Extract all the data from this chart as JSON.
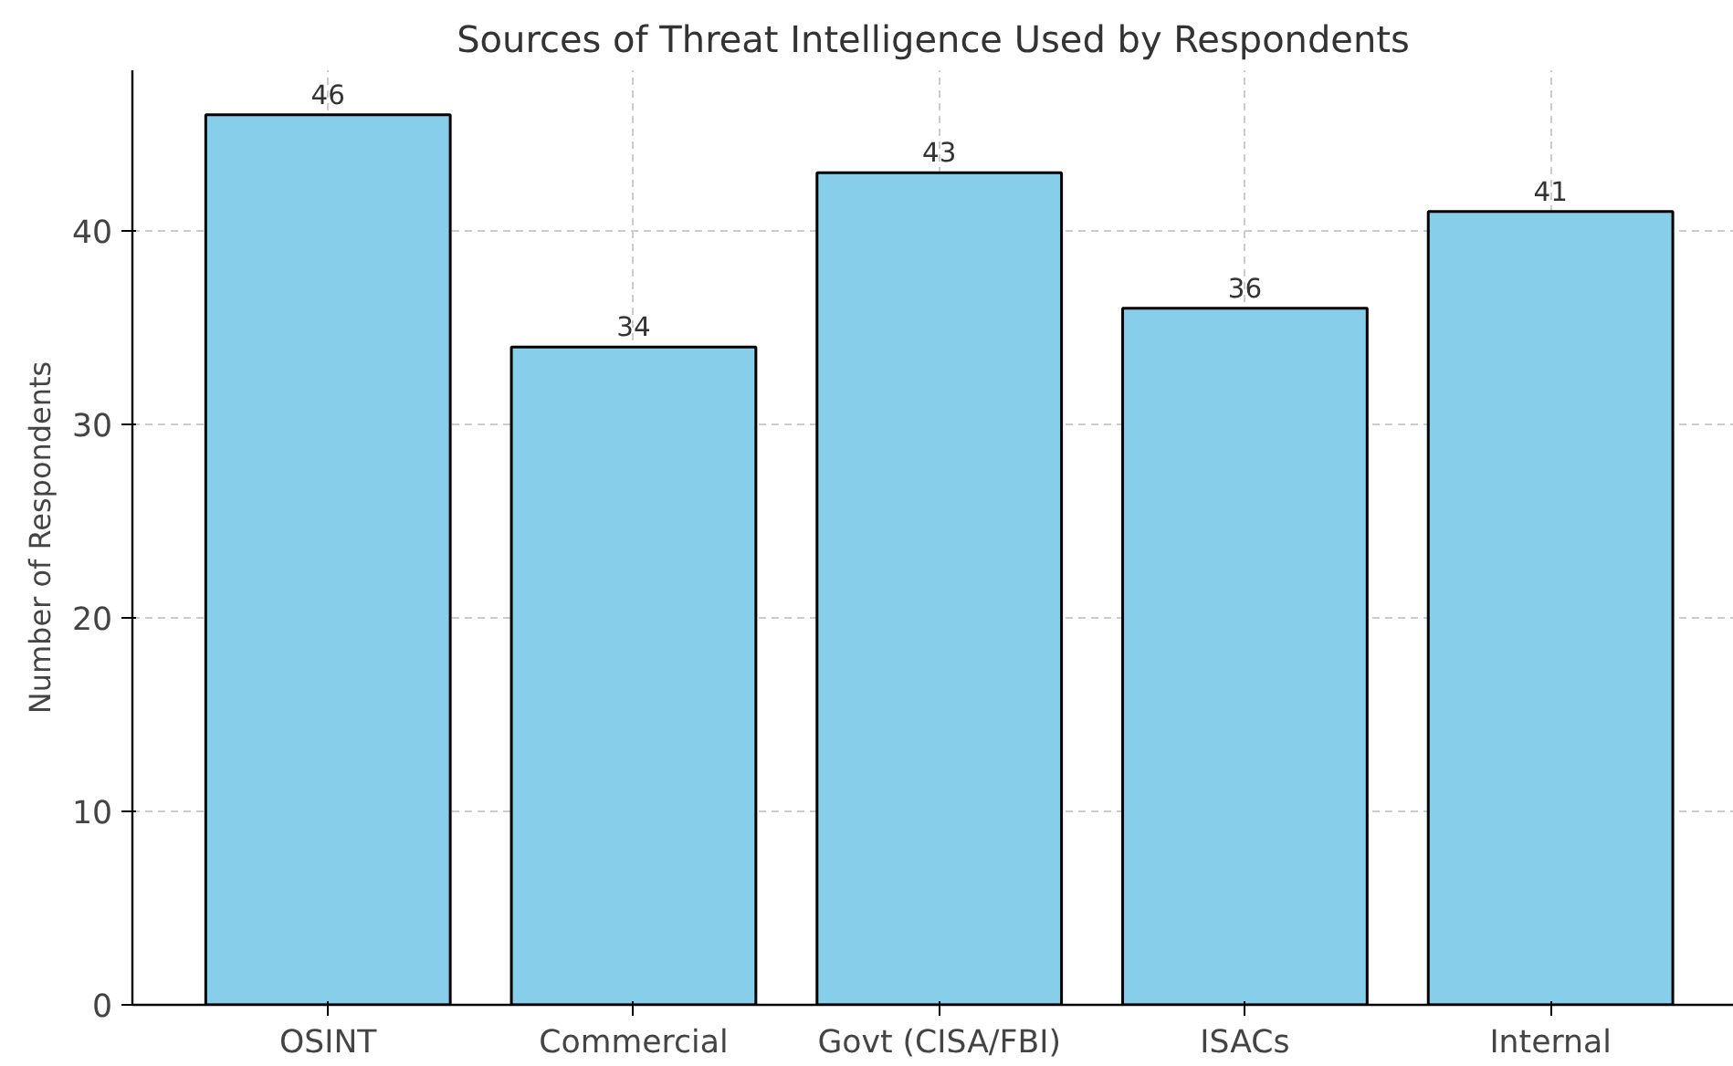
{
  "chart_data": {
    "type": "bar",
    "title": "Sources of Threat Intelligence Used by Respondents",
    "ylabel": "Number of Respondents",
    "categories": [
      "OSINT",
      "Commercial",
      "Govt (CISA/FBI)",
      "ISACs",
      "Internal"
    ],
    "values": [
      46,
      34,
      43,
      36,
      41
    ],
    "color": "#87ceeb",
    "data_labels": true,
    "ylim": [
      0,
      48.3
    ],
    "yticks": [
      0,
      10,
      20,
      30,
      40
    ],
    "grid": true
  }
}
